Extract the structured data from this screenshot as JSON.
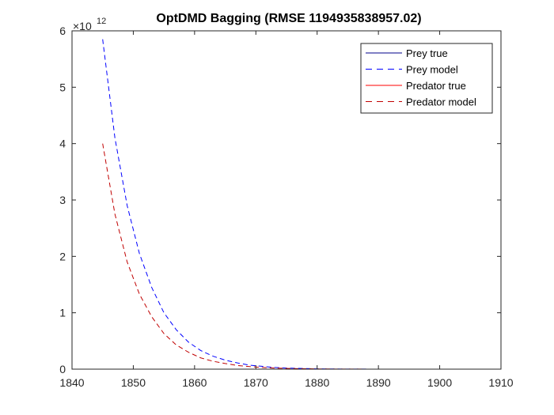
{
  "chart_data": {
    "type": "line",
    "title": "OptDMD Bagging (RMSE 1194935838957.02)",
    "xlabel": "",
    "ylabel": "",
    "xlim": [
      1840,
      1910
    ],
    "ylim": [
      0,
      6
    ],
    "x_ticks": [
      "1840",
      "1850",
      "1860",
      "1870",
      "1880",
      "1890",
      "1900",
      "1910"
    ],
    "y_ticks": [
      "0",
      "1",
      "2",
      "3",
      "4",
      "5",
      "6"
    ],
    "y_exponent_base": "×10",
    "y_exponent_power": "12",
    "legend_position": "top-right",
    "grid": false,
    "series": [
      {
        "name": "Prey true",
        "color": "#00008b",
        "dash": "solid",
        "x": [
          1845,
          1850,
          1855,
          1860,
          1865,
          1870,
          1875,
          1880,
          1885,
          1890,
          1895,
          1900,
          1903
        ],
        "y": [
          0,
          0,
          0,
          0,
          0,
          0,
          0,
          0,
          0,
          0,
          0,
          0,
          0
        ]
      },
      {
        "name": "Prey model",
        "color": "#0000ff",
        "dash": "dashed",
        "x": [
          1845,
          1847,
          1849,
          1851,
          1853,
          1855,
          1857,
          1859,
          1861,
          1863,
          1865,
          1867,
          1869,
          1871,
          1873,
          1875,
          1880,
          1885,
          1890,
          1895,
          1900,
          1903
        ],
        "y": [
          5.85,
          4.1,
          2.9,
          2.05,
          1.45,
          1.0,
          0.7,
          0.48,
          0.33,
          0.23,
          0.16,
          0.11,
          0.07,
          0.05,
          0.03,
          0.02,
          0.005,
          0.0015,
          0.0005,
          0.0002,
          0.0001,
          0.0
        ]
      },
      {
        "name": "Predator true",
        "color": "#ff0000",
        "dash": "solid",
        "x": [
          1845,
          1850,
          1855,
          1860,
          1865,
          1870,
          1875,
          1880,
          1885,
          1890,
          1895,
          1900,
          1903
        ],
        "y": [
          0,
          0,
          0,
          0,
          0,
          0,
          0,
          0,
          0,
          0,
          0,
          0,
          0
        ]
      },
      {
        "name": "Predator model",
        "color": "#c00000",
        "dash": "dashed",
        "x": [
          1845,
          1847,
          1849,
          1851,
          1853,
          1855,
          1857,
          1859,
          1861,
          1863,
          1865,
          1867,
          1869,
          1871,
          1873,
          1875,
          1880,
          1885,
          1890,
          1895,
          1900,
          1903
        ],
        "y": [
          4.0,
          2.75,
          1.9,
          1.33,
          0.93,
          0.63,
          0.43,
          0.3,
          0.2,
          0.14,
          0.1,
          0.065,
          0.045,
          0.03,
          0.02,
          0.013,
          0.004,
          0.0012,
          0.0004,
          0.0001,
          0.0,
          0.0
        ]
      }
    ]
  }
}
